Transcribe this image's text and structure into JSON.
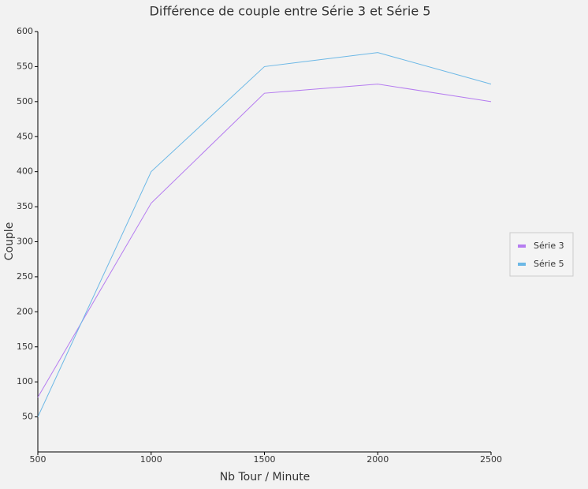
{
  "chart_data": {
    "type": "line",
    "title": "Différence de couple entre Série 3 et Série 5",
    "x_label": "Nb Tour / Minute",
    "y_label": "Couple",
    "x": [
      500,
      1000,
      1500,
      2000,
      2500
    ],
    "series": [
      {
        "name": "Série 3",
        "color": "#b57cf0",
        "values": [
          78,
          355,
          512,
          525,
          500
        ]
      },
      {
        "name": "Série 5",
        "color": "#6cb8e6",
        "values": [
          50,
          400,
          550,
          570,
          525
        ]
      }
    ],
    "xlim": [
      500,
      2500
    ],
    "xticks": [
      500,
      1000,
      1500,
      2000,
      2500
    ],
    "ylim": [
      0,
      600
    ],
    "yticks": [
      50,
      100,
      150,
      200,
      250,
      300,
      350,
      400,
      450,
      500,
      550,
      600
    ],
    "legend": "right"
  }
}
